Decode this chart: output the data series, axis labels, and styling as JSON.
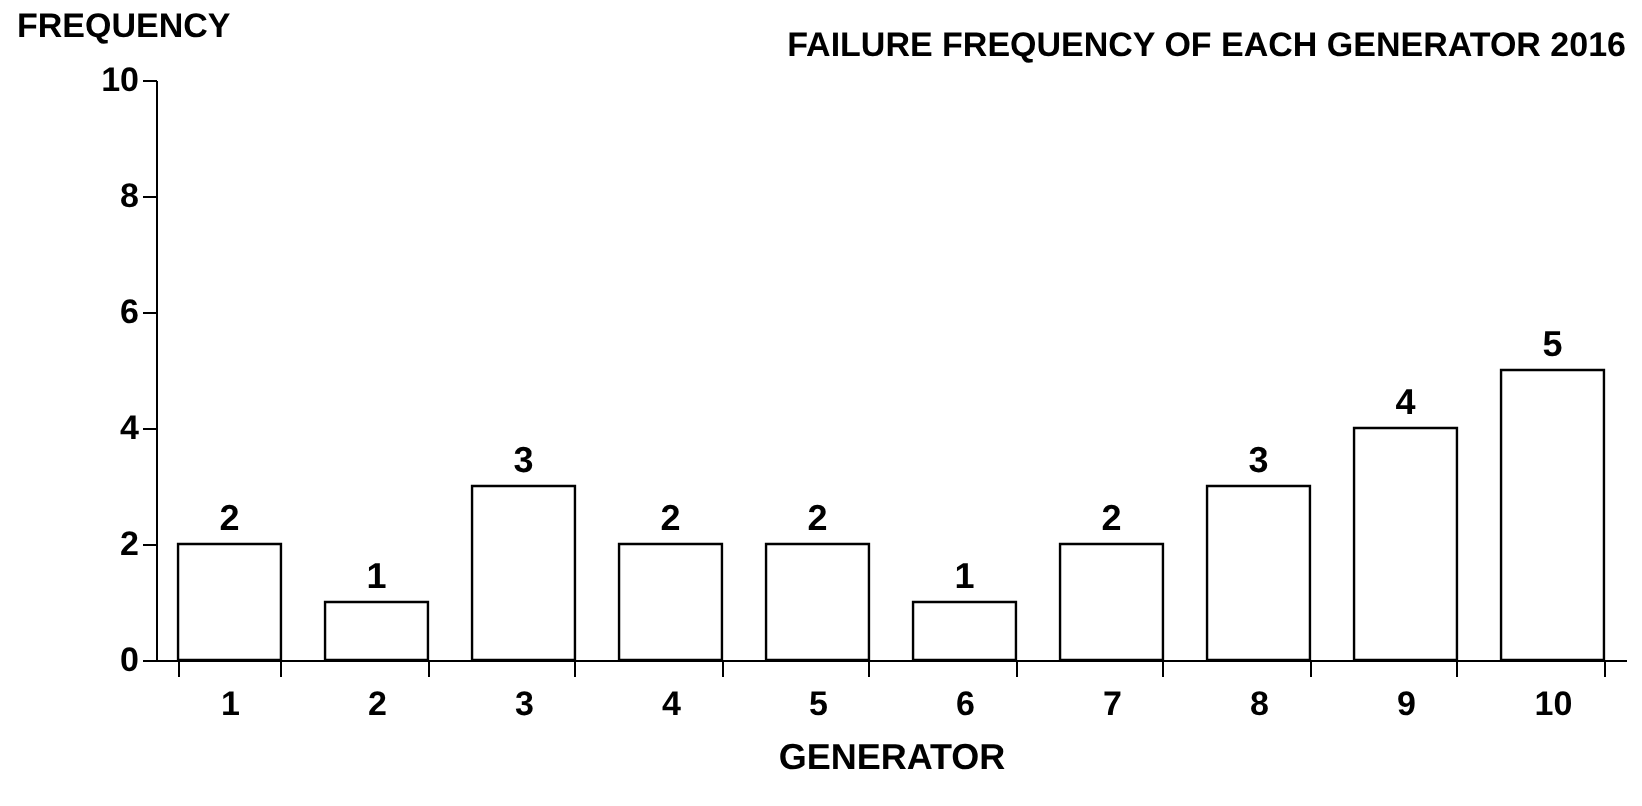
{
  "chart_data": {
    "type": "bar",
    "title": "FAILURE FREQUENCY OF EACH GENERATOR  2016",
    "xlabel": "GENERATOR",
    "ylabel": "FREQUENCY",
    "categories": [
      "1",
      "2",
      "3",
      "4",
      "5",
      "6",
      "7",
      "8",
      "9",
      "10"
    ],
    "values": [
      2,
      1,
      3,
      2,
      2,
      1,
      2,
      3,
      4,
      5
    ],
    "color": "#ffffff",
    "ylim": [
      0,
      10
    ],
    "yticks": [
      0,
      2,
      4,
      6,
      8,
      10
    ],
    "grid": false,
    "data_labels": true
  }
}
